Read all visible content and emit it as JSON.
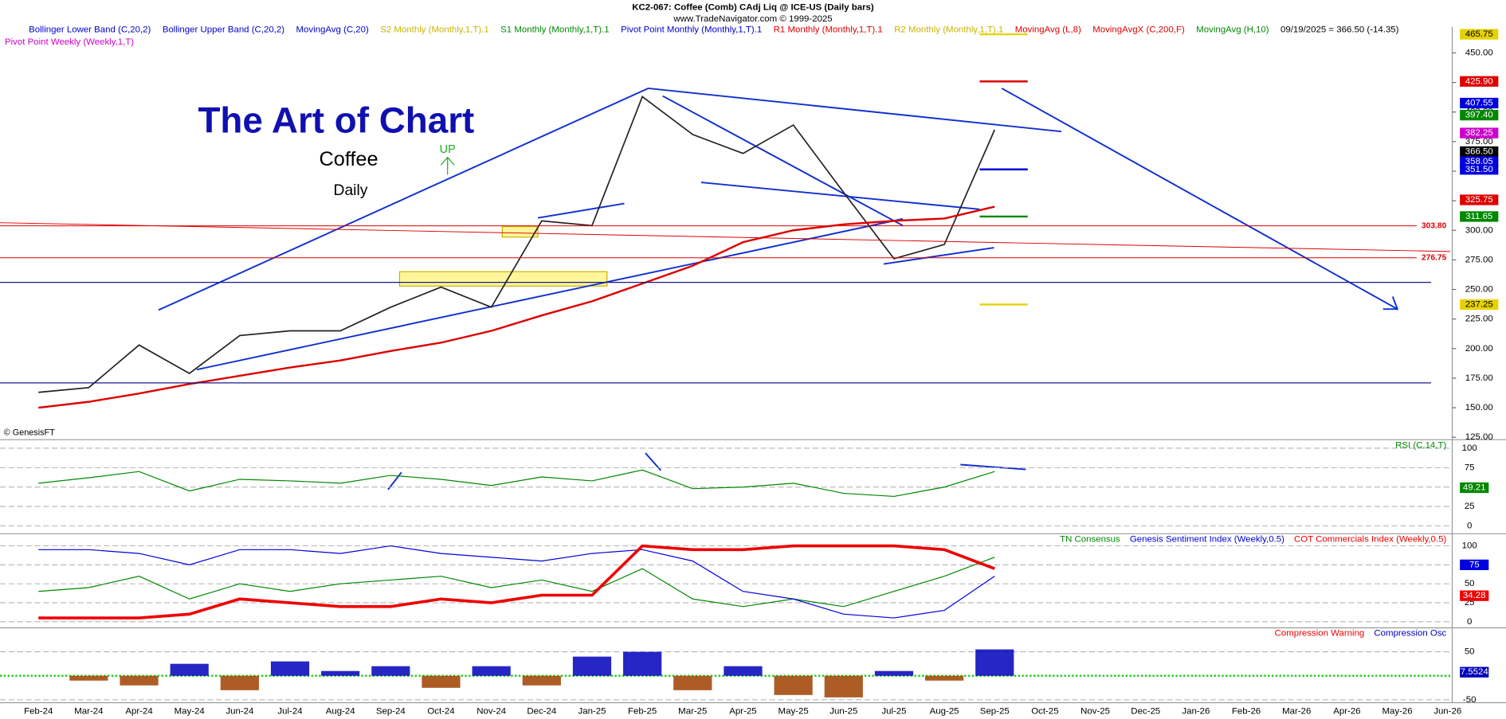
{
  "header": {
    "title": "KC2-067:  Coffee (Comb) CAdj Liq @ ICE-US  (Daily bars)",
    "subtitle": "www.TradeNavigator.com © 1999-2025"
  },
  "legend": [
    {
      "name": "Bollinger Lower Band (C,20,2)",
      "color": "#0000cc"
    },
    {
      "name": "Bollinger Upper Band (C,20,2)",
      "color": "#0000cc"
    },
    {
      "name": "MovingAvg (C,20)",
      "color": "#0000cc"
    },
    {
      "name": "S2 Monthly (Monthly,1,T).1",
      "color": "#c8b400"
    },
    {
      "name": "S1 Monthly (Monthly,1,T).1",
      "color": "#008800"
    },
    {
      "name": "Pivot Point Monthly (Monthly,1,T).1",
      "color": "#0000cc"
    },
    {
      "name": "R1 Monthly (Monthly,1,T).1",
      "color": "#dd0000"
    },
    {
      "name": "R2 Monthly (Monthly,1,T).1",
      "color": "#c8b400"
    },
    {
      "name": "MovingAvg (L,8)",
      "color": "#dd0000"
    },
    {
      "name": "MovingAvgX (C,200,F)",
      "color": "#dd0000"
    },
    {
      "name": "MovingAvg (H,10)",
      "color": "#008800"
    },
    {
      "name": "09/19/2025 = 366.50 (-14.35)",
      "color": "#000000"
    }
  ],
  "legend_row2": [
    {
      "name": "Pivot Point Weekly (Weekly,1,T)",
      "color": "#cc00cc"
    }
  ],
  "annotations": {
    "title": "The Art of Chart",
    "subtitle": "Coffee",
    "period": "Daily",
    "signal": "UP",
    "credit": "© GenesisFT"
  },
  "chart_data": [
    {
      "type": "line",
      "categories": [
        "Feb-24",
        "Mar-24",
        "Apr-24",
        "May-24",
        "Jun-24",
        "Jul-24",
        "Aug-24",
        "Sep-24",
        "Oct-24",
        "Nov-24",
        "Dec-24",
        "Jan-25",
        "Feb-25",
        "Mar-25",
        "Apr-25",
        "May-25",
        "Jun-25",
        "Jul-25",
        "Aug-25",
        "Sep-25",
        "Oct-25",
        "Nov-25",
        "Dec-25",
        "Jan-26",
        "Feb-26",
        "Mar-26",
        "Apr-26",
        "May-26",
        "Jun-26"
      ],
      "values": [
        163,
        167,
        203,
        179,
        211,
        215,
        215,
        235,
        252,
        235,
        308,
        304,
        413,
        381,
        365,
        389,
        332,
        276,
        288,
        385,
        null,
        null,
        null,
        null,
        null,
        null,
        null,
        null,
        null
      ],
      "color": "#222222",
      "series": [
        {
          "color": "#dd0000",
          "values": [
            150,
            155,
            162,
            170,
            177,
            184,
            190,
            198,
            205,
            215,
            228,
            240,
            255,
            270,
            290,
            300,
            305,
            308,
            310,
            320,
            null,
            null,
            null,
            null,
            null,
            null,
            null,
            null,
            null
          ]
        }
      ],
      "ylim": [
        123,
        472
      ],
      "yticks": [
        {
          "value": 125,
          "label": "125.00"
        },
        {
          "value": 150,
          "label": "150.00"
        },
        {
          "value": 175,
          "label": "175.00"
        },
        {
          "value": 200,
          "label": "200.00"
        },
        {
          "value": 225,
          "label": "225.00"
        },
        {
          "value": 250,
          "label": "250.00"
        },
        {
          "value": 275,
          "label": "275.00"
        },
        {
          "value": 300,
          "label": "300.00"
        },
        {
          "value": 325,
          "label": "325.00"
        },
        {
          "value": 350,
          "label": "350.00"
        },
        {
          "value": 375,
          "label": "375.00"
        },
        {
          "value": 400,
          "label": "400.00"
        },
        {
          "value": 425,
          "label": "425.00"
        },
        {
          "value": 450,
          "label": "450.00"
        }
      ],
      "markers": [
        {
          "value": 465.75,
          "label": "465.75",
          "color": "#e6d200",
          "text_color": "#000000",
          "pivot": true
        },
        {
          "value": 425.9,
          "label": "425.90",
          "color": "#dd0000",
          "text_color": "#ffffff",
          "pivot": true
        },
        {
          "value": 407.55,
          "label": "407.55",
          "color": "#0000dd",
          "text_color": "#ffffff",
          "pivot": false
        },
        {
          "value": 397.4,
          "label": "397.40",
          "color": "#008800",
          "text_color": "#ffffff",
          "pivot": false
        },
        {
          "value": 382.25,
          "label": "382.25",
          "color": "#cc00cc",
          "text_color": "#ffffff",
          "pivot": false
        },
        {
          "value": 366.5,
          "label": "366.50",
          "color": "#000000",
          "text_color": "#ffffff",
          "pivot": false
        },
        {
          "value": 358.05,
          "label": "358.05",
          "color": "#0000dd",
          "text_color": "#ffffff",
          "pivot": false
        },
        {
          "value": 351.5,
          "label": "351.50",
          "color": "#0000dd",
          "text_color": "#ffffff",
          "pivot": true
        },
        {
          "value": 325.75,
          "label": "325.75",
          "color": "#dd0000",
          "text_color": "#ffffff",
          "pivot": false
        },
        {
          "value": 311.65,
          "label": "311.65",
          "color": "#008800",
          "text_color": "#ffffff",
          "pivot": true
        },
        {
          "value": 237.25,
          "label": "237.25",
          "color": "#e6d200",
          "text_color": "#000000",
          "pivot": true
        }
      ],
      "levels": [
        {
          "value": 303.8,
          "label": "303.80",
          "color": "#dd0000"
        },
        {
          "value": 276.75,
          "label": "276.75",
          "color": "#dd0000"
        }
      ],
      "hlines": [
        {
          "value": 256,
          "color": "#1a1a8c"
        },
        {
          "value": 171,
          "color": "#1a1a8c"
        }
      ]
    },
    {
      "type": "line",
      "label": "RSI (C,14,T)",
      "color": "#008800",
      "values": [
        55,
        62,
        70,
        45,
        60,
        58,
        55,
        65,
        60,
        52,
        63,
        58,
        72,
        48,
        50,
        55,
        42,
        38,
        50,
        70,
        null,
        null,
        null,
        null,
        null,
        null,
        null,
        null,
        null
      ],
      "ylim": [
        -10,
        111
      ],
      "yticks": [
        0,
        25,
        50,
        75,
        100
      ],
      "last": [
        {
          "value": 49.21,
          "label": "49.21",
          "color": "#008800"
        }
      ]
    },
    {
      "type": "line",
      "series": [
        {
          "name": "TN Consensus",
          "color": "#008800",
          "width": 1,
          "values": [
            40,
            45,
            60,
            30,
            50,
            40,
            50,
            55,
            60,
            45,
            55,
            40,
            70,
            30,
            20,
            30,
            20,
            40,
            60,
            85,
            null,
            null,
            null,
            null,
            null,
            null,
            null,
            null,
            null
          ]
        },
        {
          "name": "Genesis Sentiment Index (Weekly,0.5)",
          "color": "#0000dd",
          "width": 1,
          "values": [
            95,
            95,
            90,
            75,
            95,
            95,
            90,
            100,
            90,
            85,
            80,
            90,
            95,
            80,
            40,
            30,
            10,
            5,
            15,
            60,
            null,
            null,
            null,
            null,
            null,
            null,
            null,
            null,
            null
          ]
        },
        {
          "name": "COT Commercials Index (Weekly,0.5)",
          "color": "#ee0000",
          "width": 3,
          "values": [
            5,
            5,
            5,
            10,
            30,
            25,
            20,
            20,
            30,
            25,
            35,
            35,
            100,
            95,
            95,
            100,
            100,
            100,
            95,
            70,
            null,
            null,
            null,
            null,
            null,
            null,
            null,
            null,
            null
          ]
        }
      ],
      "ylim": [
        -8,
        116
      ],
      "yticks": [
        0,
        25,
        50,
        75,
        100
      ],
      "last": [
        {
          "value": 75,
          "label": "75",
          "color": "#0000dd"
        },
        {
          "value": 34.28,
          "label": "34.28",
          "color": "#ee0000"
        }
      ]
    },
    {
      "type": "bar",
      "warning": {
        "name": "Compression Warning",
        "color": "#ee0000"
      },
      "series": [
        {
          "name": "Compression Osc",
          "color": "#0000bb",
          "negative_color": "#a04000",
          "values": [
            0,
            -10,
            -20,
            25,
            -30,
            30,
            10,
            20,
            -25,
            20,
            -20,
            40,
            50,
            -30,
            20,
            -40,
            -45,
            10,
            -10,
            55,
            null,
            null,
            null,
            null,
            null,
            null,
            null,
            null,
            null
          ]
        }
      ],
      "ylim": [
        -56,
        100
      ],
      "yticks": [
        -50,
        50
      ],
      "last": [
        {
          "value": 7.5524,
          "label": "7.5524",
          "color": "#0000bb"
        }
      ]
    }
  ]
}
